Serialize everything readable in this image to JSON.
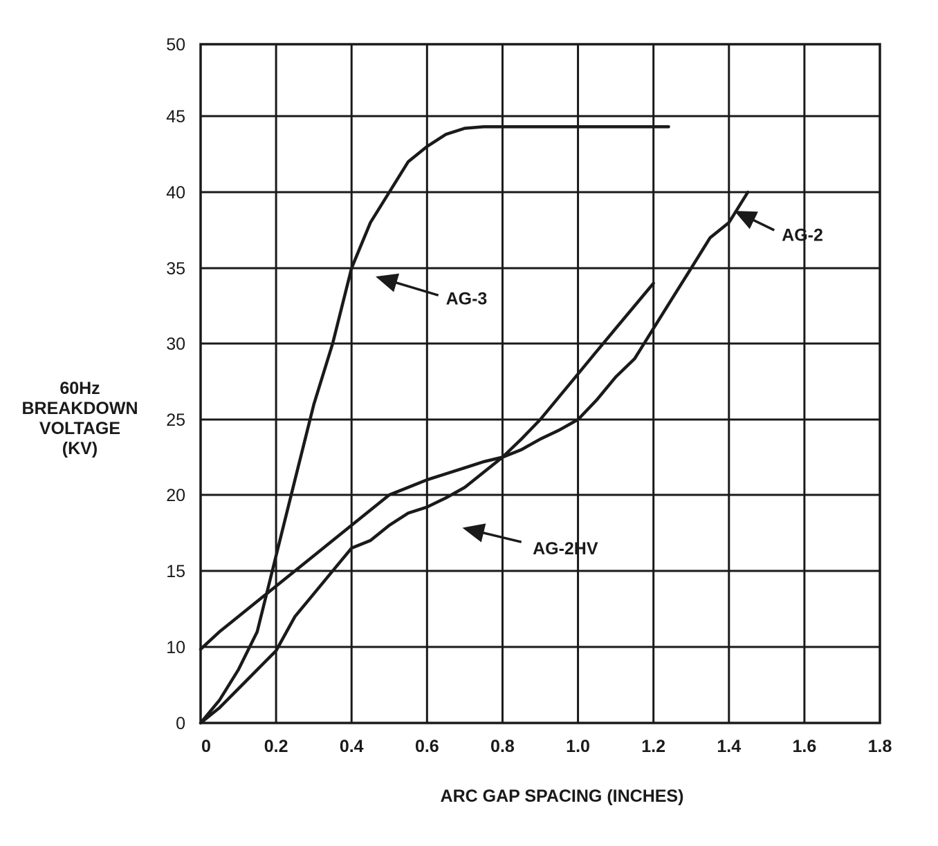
{
  "chart_data": {
    "type": "line",
    "xlabel": "ARC GAP SPACING (INCHES)",
    "ylabel_lines": [
      "60Hz",
      "BREAKDOWN",
      "VOLTAGE",
      "(KV)"
    ],
    "xlim": [
      0,
      1.8
    ],
    "ylim": [
      0,
      50
    ],
    "x_ticks": [
      "0",
      "0.2",
      "0.4",
      "0.6",
      "0.8",
      "1.0",
      "1.2",
      "1.4",
      "1.6",
      "1.8"
    ],
    "y_ticks": [
      "0",
      "10",
      "15",
      "20",
      "25",
      "30",
      "35",
      "40",
      "45",
      "50"
    ],
    "grid": true,
    "legend": "none (series labeled with arrows)",
    "series": [
      {
        "name": "AG-3",
        "x": [
          0,
          0.05,
          0.1,
          0.15,
          0.2,
          0.25,
          0.3,
          0.35,
          0.4,
          0.45,
          0.5,
          0.55,
          0.6,
          0.65,
          0.7,
          0.75,
          0.8,
          0.9,
          1.0,
          1.1,
          1.2,
          1.24
        ],
        "y": [
          0,
          3,
          7,
          11,
          16,
          21,
          26,
          30,
          35,
          38,
          40,
          42,
          43,
          43.8,
          44.2,
          44.3,
          44.3,
          44.3,
          44.3,
          44.3,
          44.3,
          44.3
        ],
        "label": {
          "text": "AG-3",
          "x": 0.65,
          "y": 33
        }
      },
      {
        "name": "AG-2",
        "x": [
          0,
          0.05,
          0.1,
          0.15,
          0.2,
          0.25,
          0.3,
          0.35,
          0.4,
          0.45,
          0.5,
          0.55,
          0.6,
          0.65,
          0.7,
          0.75,
          0.8,
          0.85,
          0.9,
          0.95,
          1.0,
          1.05,
          1.1,
          1.15,
          1.2,
          1.25,
          1.3,
          1.35,
          1.4,
          1.45
        ],
        "y": [
          9.7,
          11,
          12,
          13,
          14,
          15,
          16,
          17,
          18,
          19,
          20,
          20.5,
          21,
          21.4,
          21.8,
          22.2,
          22.5,
          23,
          23.7,
          24.3,
          25,
          26.3,
          27.8,
          29,
          31,
          33,
          35,
          37,
          38,
          40
        ],
        "label": {
          "text": "AG-2",
          "x": 1.54,
          "y": 37.2
        }
      },
      {
        "name": "AG-2HV",
        "x": [
          0,
          0.05,
          0.1,
          0.15,
          0.2,
          0.25,
          0.3,
          0.35,
          0.4,
          0.45,
          0.5,
          0.55,
          0.6,
          0.65,
          0.7,
          0.75,
          0.8,
          0.85,
          0.9,
          0.95,
          1.0,
          1.05,
          1.1,
          1.15,
          1.2
        ],
        "y": [
          0,
          2,
          4.5,
          7,
          9.5,
          12,
          13.5,
          15,
          16.5,
          17,
          18,
          18.8,
          19.2,
          19.8,
          20.5,
          21.5,
          22.5,
          23.7,
          25,
          26.5,
          28,
          29.5,
          31,
          32.5,
          34
        ],
        "label": {
          "text": "AG-2HV",
          "x": 0.88,
          "y": 16.5
        }
      }
    ],
    "arrows": [
      {
        "from": [
          0.63,
          33.2
        ],
        "to": [
          0.47,
          34.4
        ]
      },
      {
        "from": [
          1.52,
          37.5
        ],
        "to": [
          1.42,
          38.7
        ]
      },
      {
        "from": [
          0.85,
          16.9
        ],
        "to": [
          0.7,
          17.8
        ]
      }
    ]
  }
}
